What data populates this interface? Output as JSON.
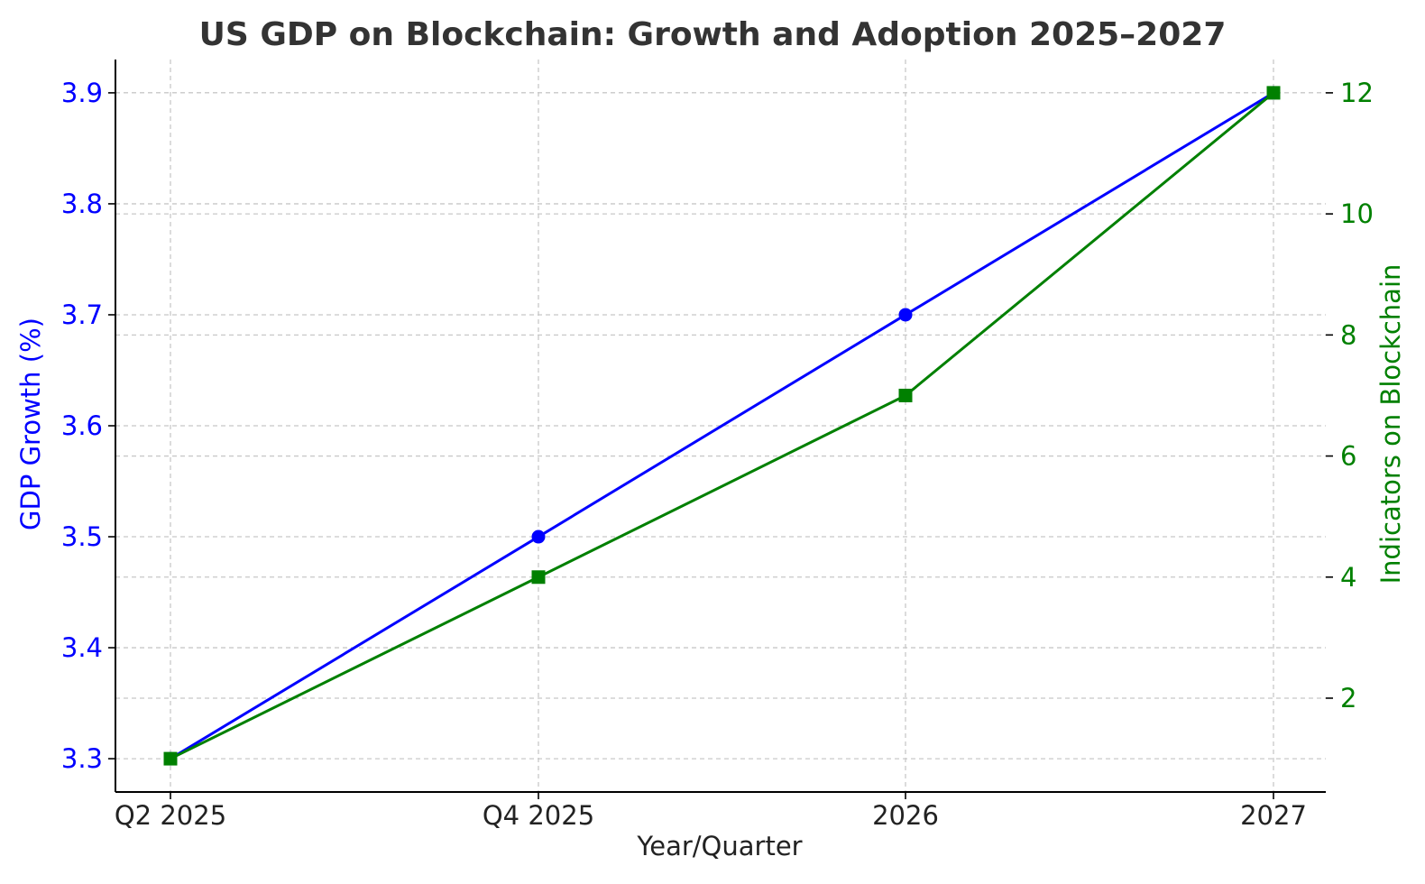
{
  "chart_data": {
    "type": "line",
    "title": "US GDP on Blockchain: Growth and Adoption 2025–2027",
    "xlabel": "Year/Quarter",
    "categories": [
      "Q2 2025",
      "Q4 2025",
      "2026",
      "2027"
    ],
    "y_left": {
      "label": "GDP Growth (%)",
      "range": [
        3.27,
        3.93
      ],
      "ticks": [
        "3.3",
        "3.4",
        "3.5",
        "3.6",
        "3.7",
        "3.8",
        "3.9"
      ],
      "color": "#0000ff"
    },
    "y_right": {
      "label": "Indicators on Blockchain",
      "range": [
        0.45,
        12.55
      ],
      "ticks": [
        "2",
        "4",
        "6",
        "8",
        "10",
        "12"
      ],
      "color": "#008000"
    },
    "series": [
      {
        "axis": "left",
        "values": [
          3.3,
          3.5,
          3.7,
          3.9
        ],
        "color": "#0000ff",
        "marker": "circle"
      },
      {
        "axis": "right",
        "values": [
          1,
          4,
          7,
          12
        ],
        "color": "#008000",
        "marker": "square"
      }
    ],
    "grid": true
  }
}
